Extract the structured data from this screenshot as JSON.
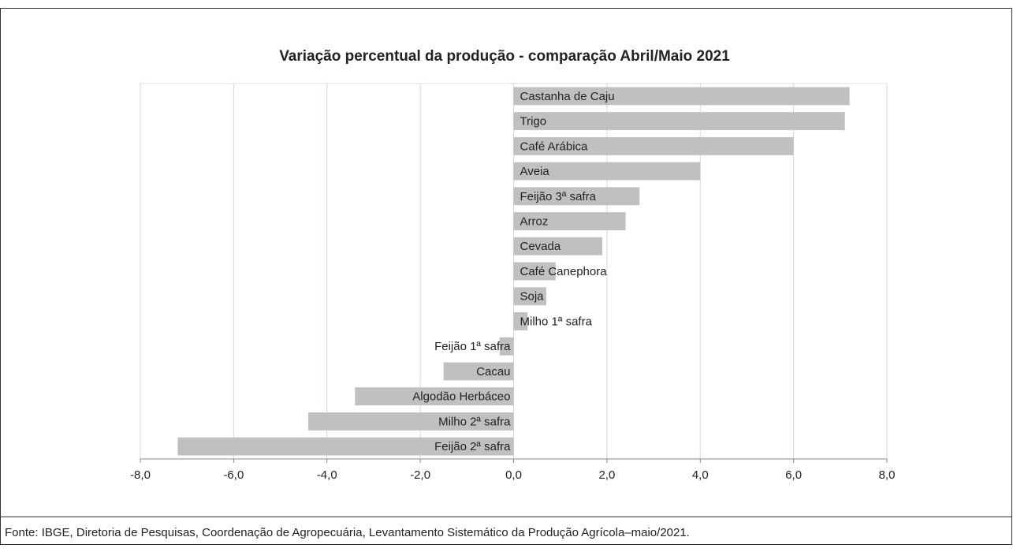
{
  "chart_data": {
    "type": "bar",
    "orientation": "horizontal",
    "title": "Variação percentual da produção - comparação Abril/Maio 2021",
    "categories": [
      "Castanha de Caju",
      "Trigo",
      "Café Arábica",
      "Aveia",
      "Feijão 3ª safra",
      "Arroz",
      "Cevada",
      "Café Canephora",
      "Soja",
      "Milho 1ª safra",
      "Feijão 1ª safra",
      "Cacau",
      "Algodão Herbáceo",
      "Milho 2ª safra",
      "Feijão 2ª safra"
    ],
    "values": [
      7.2,
      7.1,
      6.0,
      4.0,
      2.7,
      2.4,
      1.9,
      0.9,
      0.7,
      0.3,
      -0.3,
      -1.5,
      -3.4,
      -4.4,
      -7.2
    ],
    "color": "#c0c0c0",
    "xlim": [
      -8,
      8
    ],
    "xticks": [
      {
        "value": -8,
        "label": "-8,0"
      },
      {
        "value": -6,
        "label": "-6,0"
      },
      {
        "value": -4,
        "label": "-4,0"
      },
      {
        "value": -2,
        "label": "-2,0"
      },
      {
        "value": 0,
        "label": "0,0"
      },
      {
        "value": 2,
        "label": "2,0"
      },
      {
        "value": 4,
        "label": "4,0"
      },
      {
        "value": 6,
        "label": "6,0"
      },
      {
        "value": 8,
        "label": "8,0"
      }
    ],
    "grid": true
  },
  "footer": "Fonte: IBGE, Diretoria de Pesquisas, Coordenação de Agropecuária, Levantamento Sistemático da Produção Agrícola–maio/2021."
}
